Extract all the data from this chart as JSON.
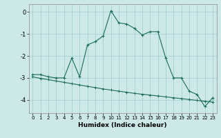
{
  "xlabel": "Humidex (Indice chaleur)",
  "background_color": "#cce8e8",
  "grid_color": "#aad4d4",
  "line_color": "#1a6b5a",
  "xlim": [
    -0.5,
    23.5
  ],
  "ylim": [
    -4.6,
    0.35
  ],
  "yticks": [
    0,
    -1,
    -2,
    -3,
    -4
  ],
  "xticks": [
    0,
    1,
    2,
    3,
    4,
    5,
    6,
    7,
    8,
    9,
    10,
    11,
    12,
    13,
    14,
    15,
    16,
    17,
    18,
    19,
    20,
    21,
    22,
    23
  ],
  "curve1_x": [
    0,
    1,
    2,
    3,
    4,
    5,
    6,
    7,
    8,
    9,
    10,
    11,
    12,
    13,
    14,
    15,
    16,
    17,
    18,
    19,
    20,
    21,
    22,
    23
  ],
  "curve1_y": [
    -2.85,
    -2.85,
    -2.95,
    -3.0,
    -3.0,
    -2.1,
    -2.95,
    -1.5,
    -1.35,
    -1.1,
    0.05,
    -0.5,
    -0.55,
    -0.75,
    -1.05,
    -0.9,
    -0.9,
    -2.1,
    -3.0,
    -3.0,
    -3.6,
    -3.75,
    -4.3,
    -3.9
  ],
  "curve2_x": [
    0,
    1,
    2,
    3,
    4,
    5,
    6,
    7,
    8,
    9,
    10,
    11,
    12,
    13,
    14,
    15,
    16,
    17,
    18,
    19,
    20,
    21,
    22,
    23
  ],
  "curve2_y": [
    -2.95,
    -3.02,
    -3.08,
    -3.14,
    -3.2,
    -3.26,
    -3.32,
    -3.38,
    -3.44,
    -3.5,
    -3.55,
    -3.6,
    -3.65,
    -3.7,
    -3.74,
    -3.78,
    -3.82,
    -3.86,
    -3.9,
    -3.94,
    -3.98,
    -4.02,
    -4.06,
    -4.1
  ]
}
